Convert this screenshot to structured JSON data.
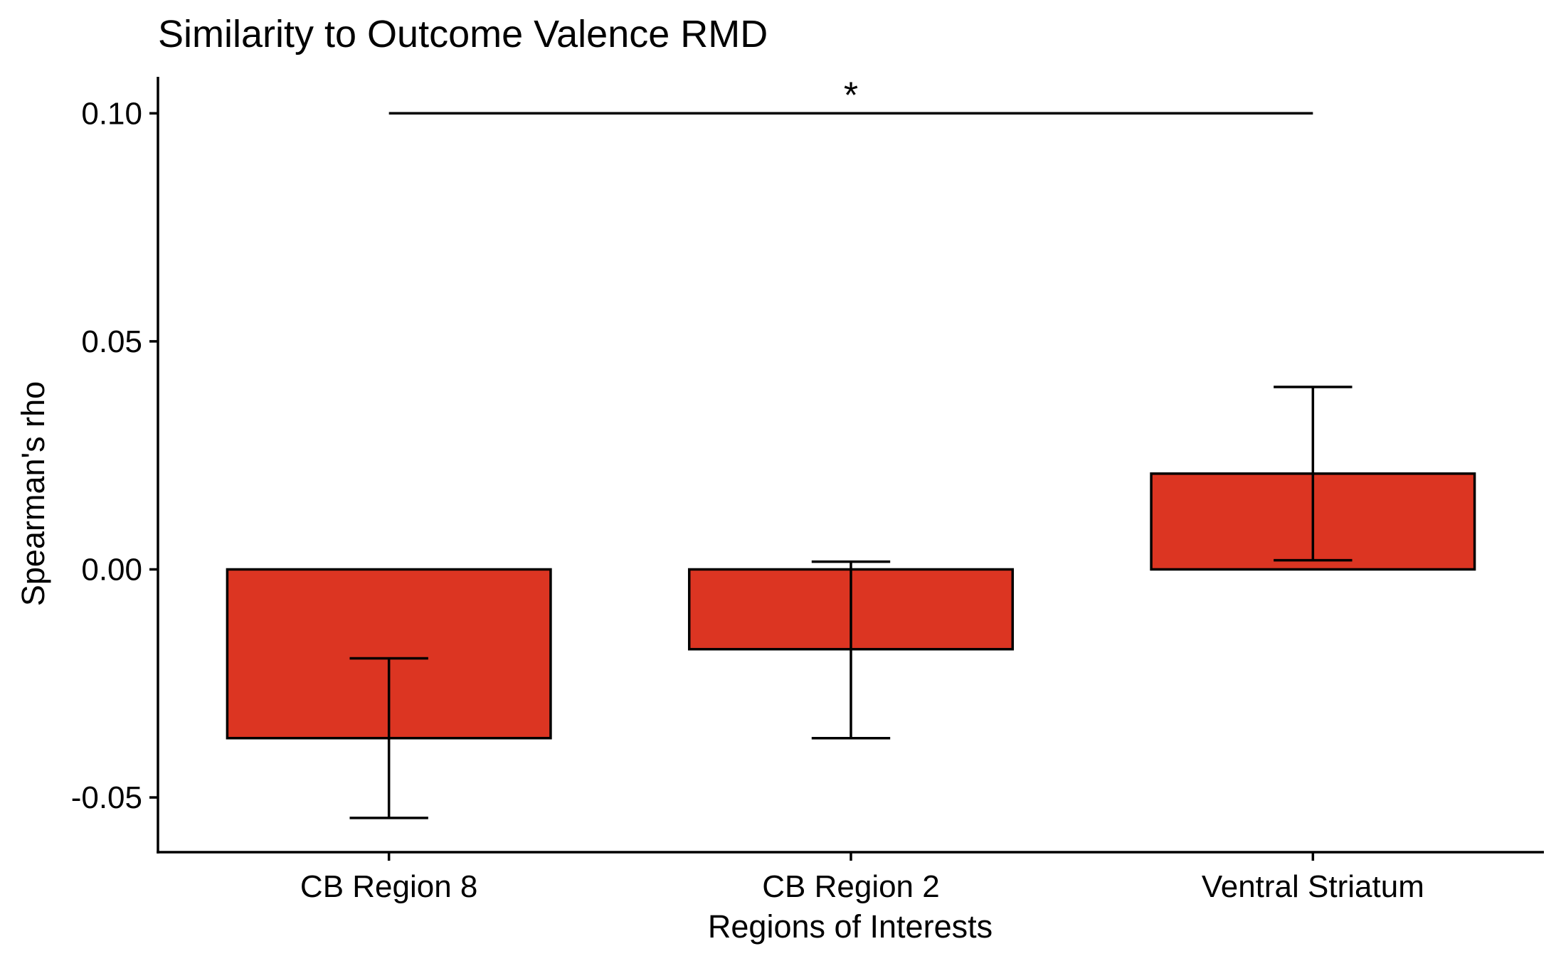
{
  "chart_data": {
    "type": "bar",
    "title": "Similarity to Outcome Valence RMD",
    "xlabel": "Regions of Interests",
    "ylabel": "Spearman's rho",
    "categories": [
      "CB Region 8",
      "CB Region 2",
      "Ventral Striatum"
    ],
    "values": [
      -0.037,
      -0.0175,
      0.021
    ],
    "error_low": [
      -0.0545,
      -0.037,
      0.002
    ],
    "error_high": [
      -0.0195,
      0.0017,
      0.04
    ],
    "ylim": [
      -0.062,
      0.108
    ],
    "yticks": [
      -0.05,
      0.0,
      0.05,
      0.1
    ],
    "ytick_labels": [
      "-0.05",
      "0.00",
      "0.05",
      "0.10"
    ],
    "significance": {
      "from": "CB Region 8",
      "to": "Ventral Striatum",
      "y": 0.1,
      "label": "*"
    },
    "grid": false,
    "bar_color": "#dc3522",
    "edge_color": "#000000"
  }
}
